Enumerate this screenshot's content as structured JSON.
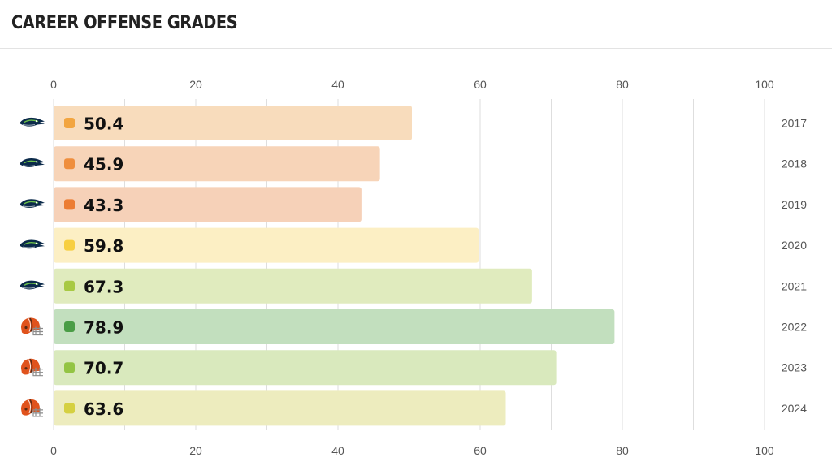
{
  "title": "CAREER OFFENSE GRADES",
  "chart_data": {
    "type": "bar",
    "orientation": "horizontal",
    "title": "CAREER OFFENSE GRADES",
    "xlim": [
      0,
      100
    ],
    "ticks": [
      0,
      20,
      40,
      60,
      80,
      100
    ],
    "tick_labels": [
      "0",
      "20",
      "40",
      "60",
      "80",
      "100"
    ],
    "grid": true,
    "categories": [
      "2017",
      "2018",
      "2019",
      "2020",
      "2021",
      "2022",
      "2023",
      "2024"
    ],
    "values": [
      50.4,
      45.9,
      43.3,
      59.8,
      67.3,
      78.9,
      70.7,
      63.6
    ],
    "value_labels": [
      "50.4",
      "45.9",
      "43.3",
      "59.8",
      "67.3",
      "78.9",
      "70.7",
      "63.6"
    ],
    "team_icons": [
      "seahawks-logo-icon",
      "seahawks-logo-icon",
      "seahawks-logo-icon",
      "seahawks-logo-icon",
      "seahawks-logo-icon",
      "browns-helmet-icon",
      "browns-helmet-icon",
      "browns-helmet-icon"
    ],
    "bar_colors": [
      "#f8dcbc",
      "#f7d4b8",
      "#f6d1b8",
      "#fcefc4",
      "#e0ebbe",
      "#c2dfbe",
      "#d9e9bd",
      "#edecbe"
    ],
    "dot_colors": [
      "#f2a540",
      "#ef8e3d",
      "#ec7d33",
      "#f7cf40",
      "#a8c944",
      "#4a9d46",
      "#93c444",
      "#d5d041"
    ]
  }
}
